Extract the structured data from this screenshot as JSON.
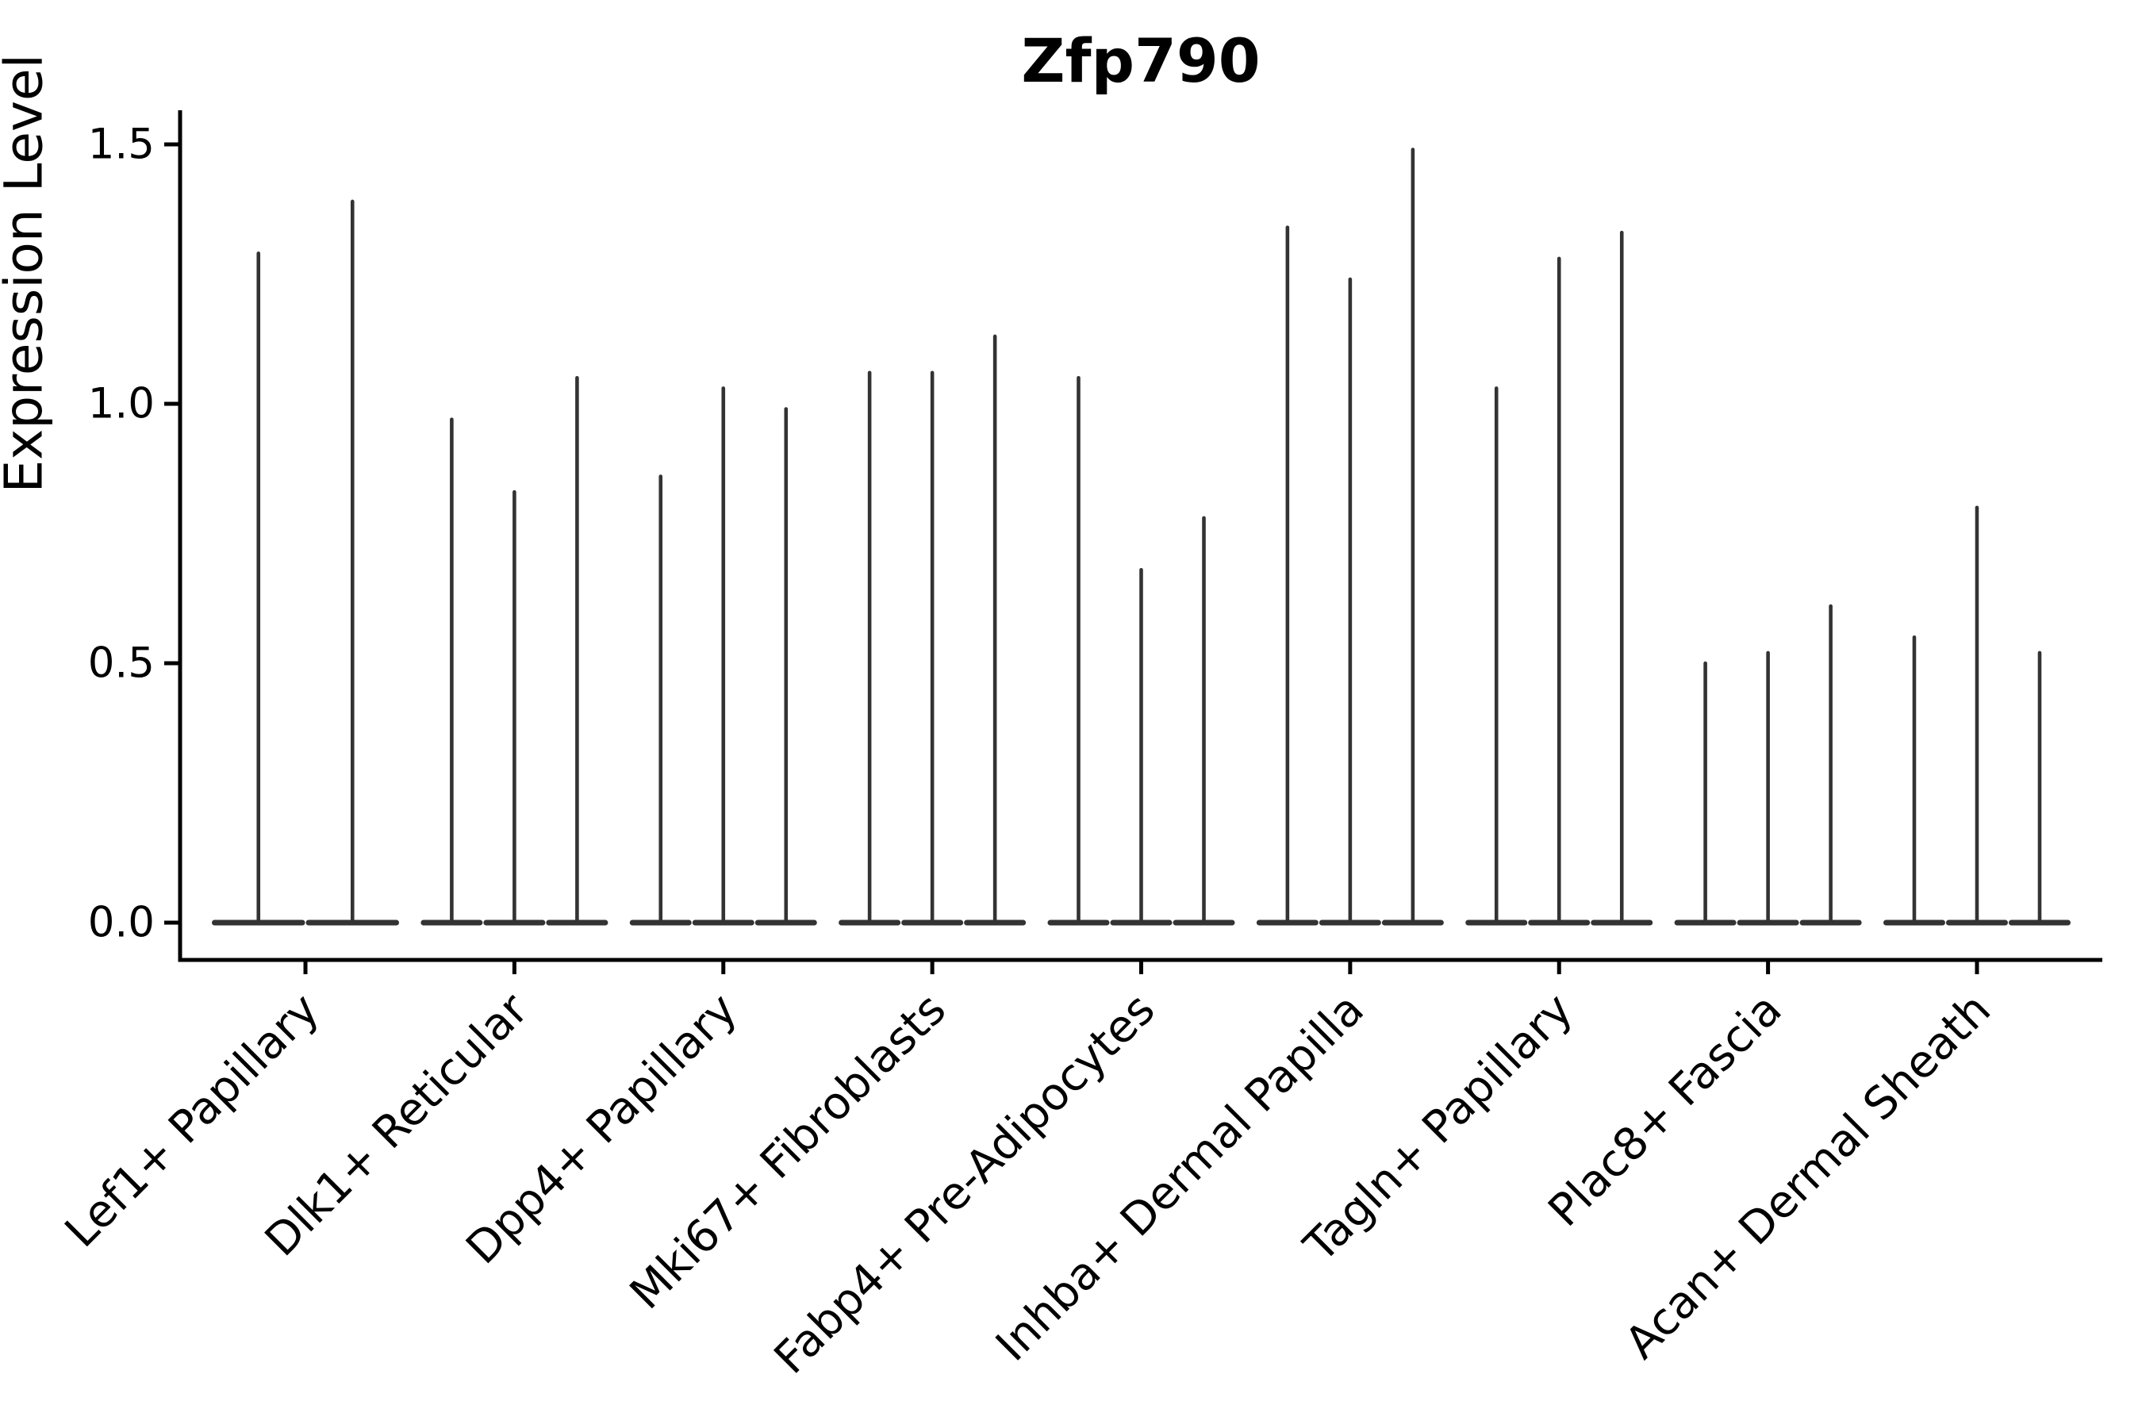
{
  "chart_data": {
    "type": "violin",
    "title": "Zfp790",
    "ylabel": "Expression Level",
    "xlabel": "",
    "ytick_labels": [
      "0.0",
      "0.5",
      "1.0",
      "1.5"
    ],
    "ytick_values": [
      0.0,
      0.5,
      1.0,
      1.5
    ],
    "ylim": [
      -0.075,
      1.565
    ],
    "grid": false,
    "legend": "none",
    "background_color": "#ffffff",
    "axis_color": "#000000",
    "violin_color": "#333333",
    "violin_min": 0.0,
    "violin_shape": "flat-base-at-zero-with-thin-spike-to-max",
    "groups": [
      {
        "label": "Lef1+ Papillary",
        "violin_maxima": [
          1.29,
          1.39
        ]
      },
      {
        "label": "Dlk1+ Reticular",
        "violin_maxima": [
          0.97,
          0.83,
          1.05
        ]
      },
      {
        "label": "Dpp4+ Papillary",
        "violin_maxima": [
          0.86,
          1.03,
          0.99
        ]
      },
      {
        "label": "Mki67+ Fibroblasts",
        "violin_maxima": [
          1.06,
          1.06,
          1.13
        ]
      },
      {
        "label": "Fabp4+ Pre-Adipocytes",
        "violin_maxima": [
          1.05,
          0.68,
          0.78
        ]
      },
      {
        "label": "Inhba+ Dermal Papilla",
        "violin_maxima": [
          1.34,
          1.24,
          1.49
        ]
      },
      {
        "label": "Tagln+ Papillary",
        "violin_maxima": [
          1.03,
          1.28,
          1.33
        ]
      },
      {
        "label": "Plac8+ Fascia",
        "violin_maxima": [
          0.5,
          0.52,
          0.61
        ]
      },
      {
        "label": "Acan+ Dermal Sheath",
        "violin_maxima": [
          0.55,
          0.8,
          0.52
        ]
      }
    ]
  }
}
